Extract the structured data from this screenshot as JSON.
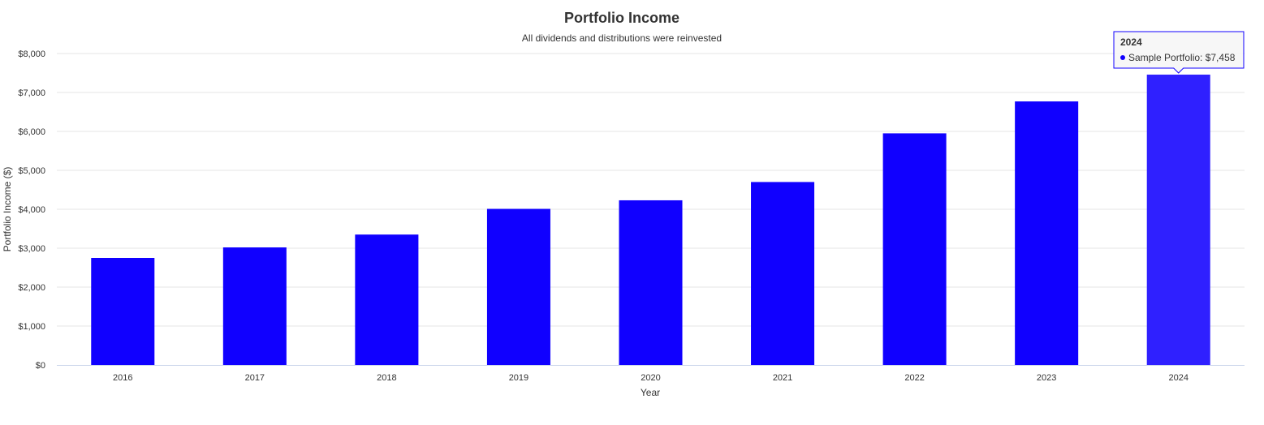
{
  "chart_data": {
    "type": "bar",
    "title": "Portfolio Income",
    "subtitle": "All dividends and distributions were reinvested",
    "xlabel": "Year",
    "ylabel": "Portfolio Income ($)",
    "categories": [
      "2016",
      "2017",
      "2018",
      "2019",
      "2020",
      "2021",
      "2022",
      "2023",
      "2024"
    ],
    "series": [
      {
        "name": "Sample Portfolio",
        "values": [
          2750,
          3020,
          3350,
          4010,
          4230,
          4700,
          5950,
          6770,
          7458
        ]
      }
    ],
    "ylim": [
      0,
      8000
    ],
    "yticks": [
      0,
      1000,
      2000,
      3000,
      4000,
      5000,
      6000,
      7000,
      8000
    ],
    "ytick_labels": [
      "$0",
      "$1,000",
      "$2,000",
      "$3,000",
      "$4,000",
      "$5,000",
      "$6,000",
      "$7,000",
      "$8,000"
    ],
    "grid": true,
    "bar_color": "#1000ff",
    "highlight_color": "#2f20ff",
    "tooltip": {
      "category": "2024",
      "text": "Sample Portfolio: $7,458"
    }
  }
}
